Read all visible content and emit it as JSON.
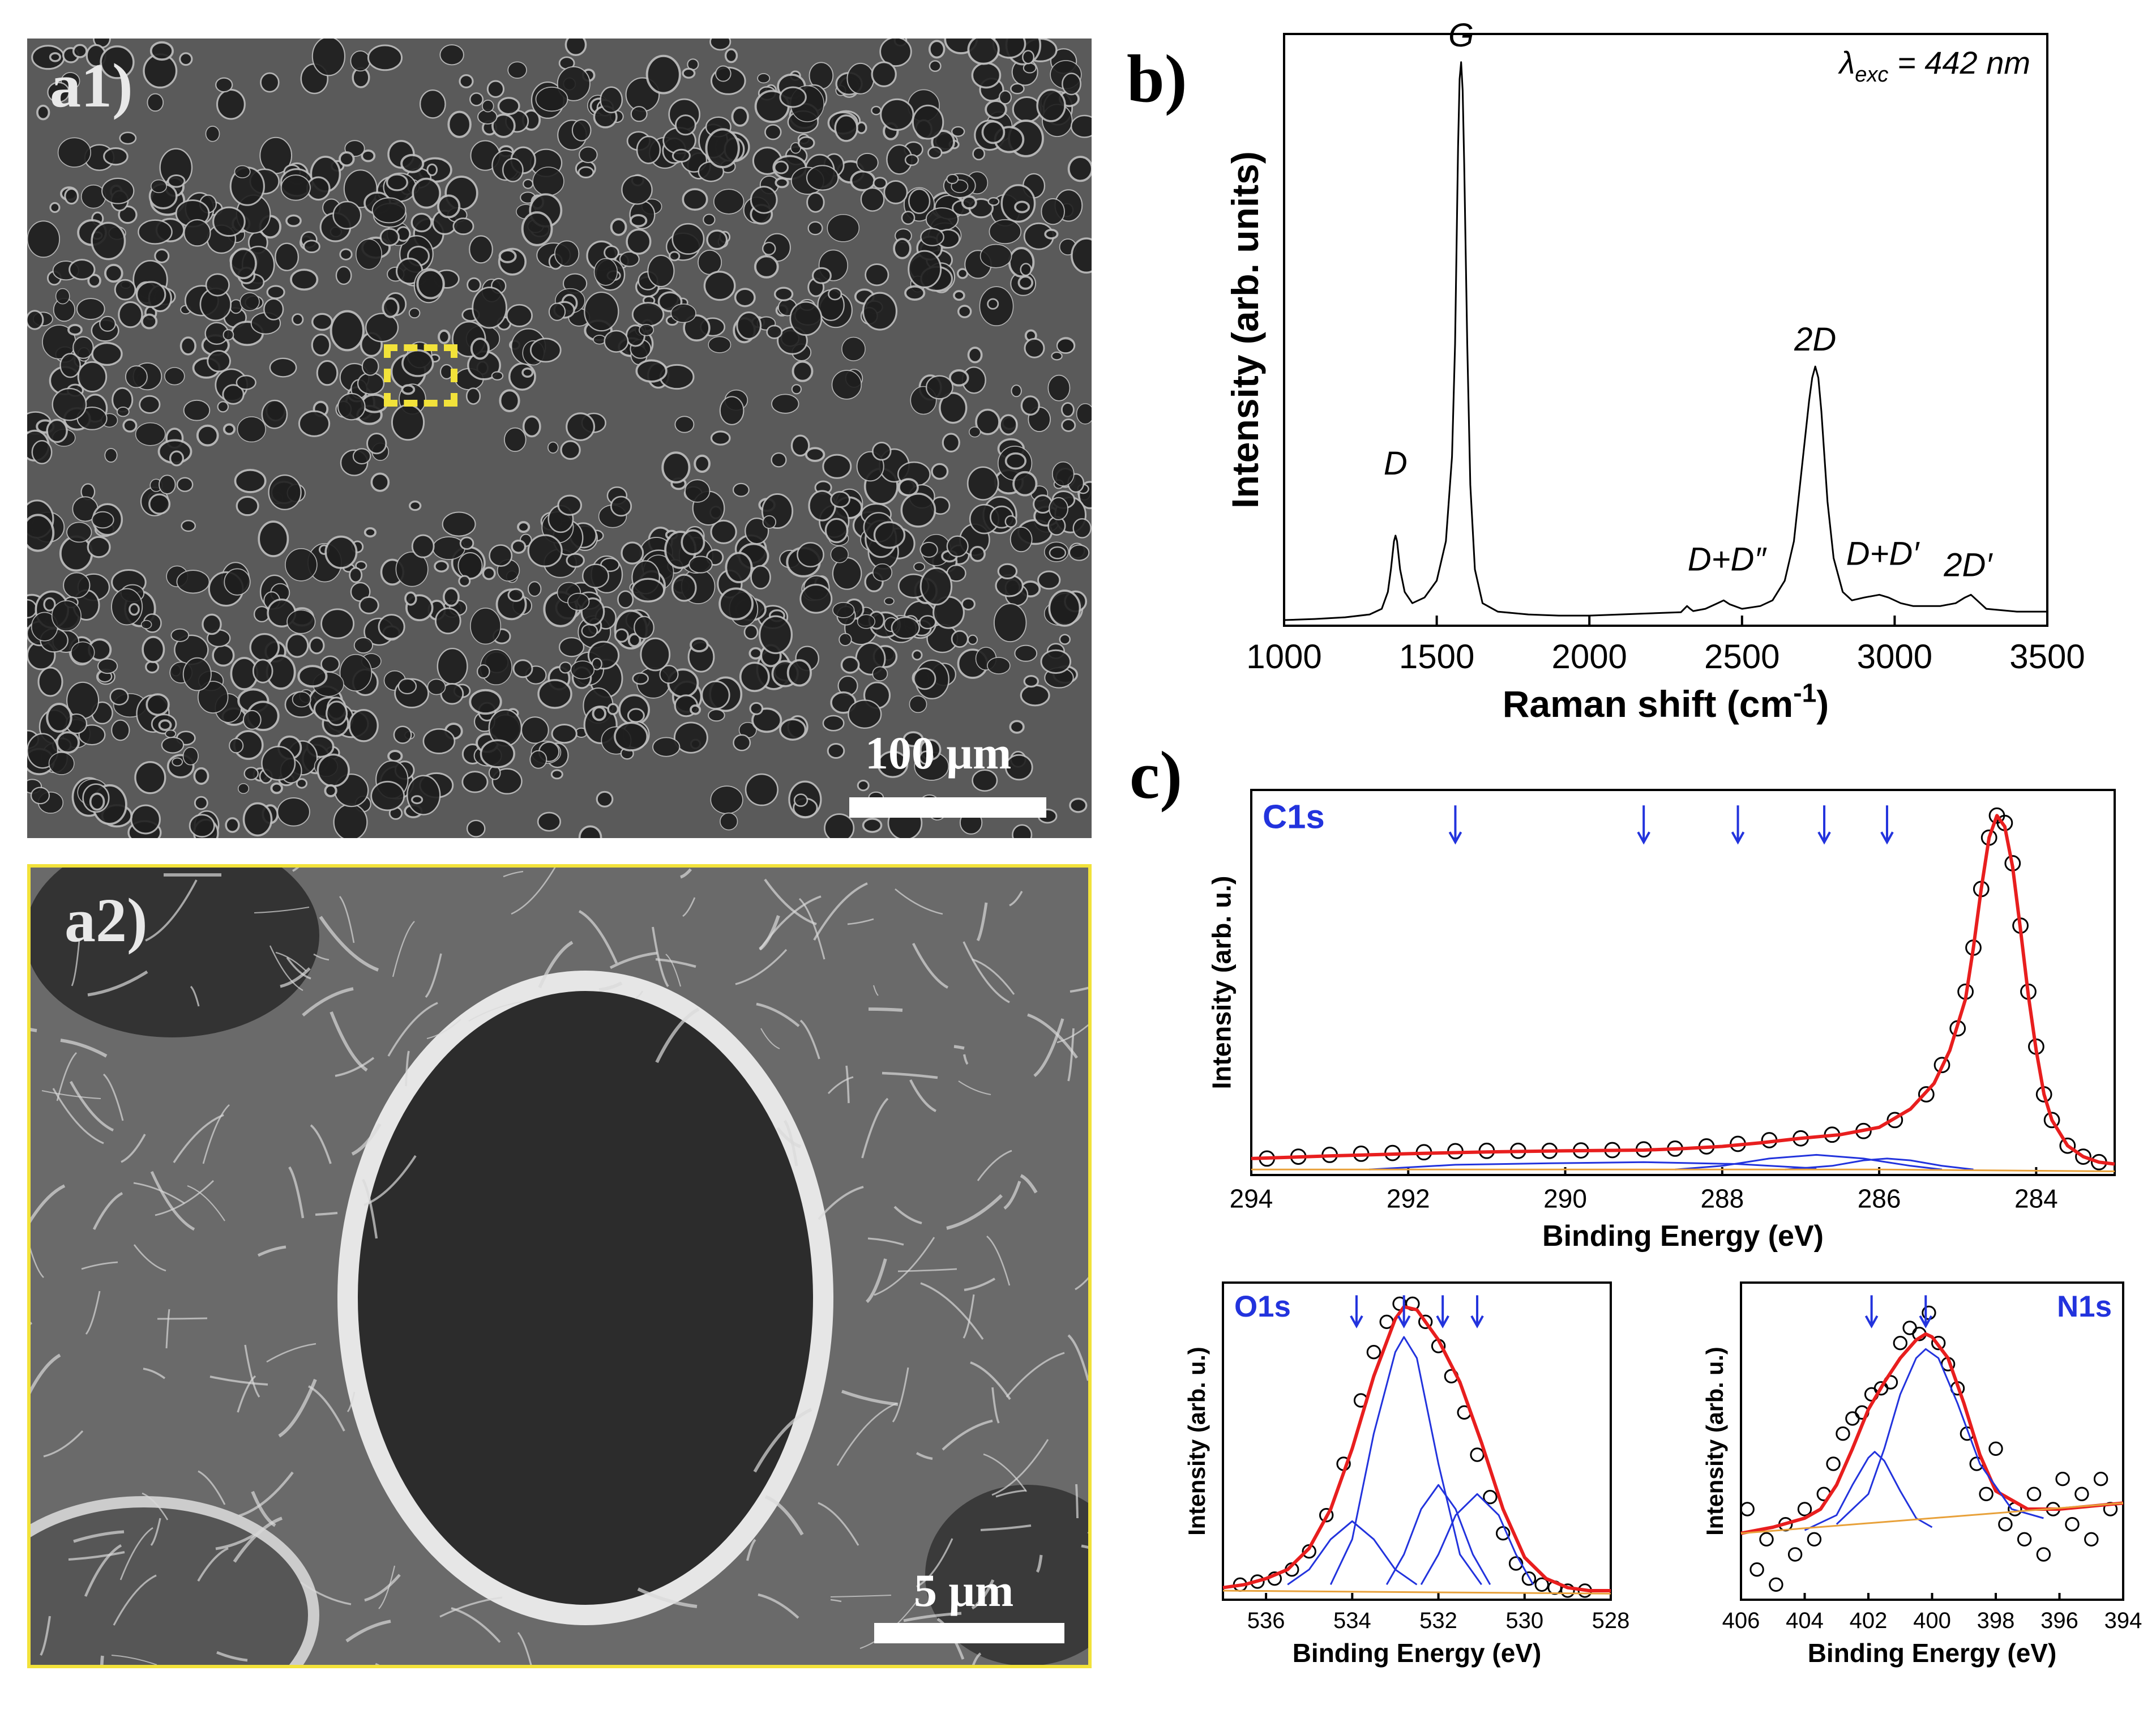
{
  "figure": {
    "label_a1": "a1)",
    "label_a2": "a2)",
    "label_b": "b)",
    "label_c": "c)",
    "scalebar_a1": "100 μm",
    "scalebar_a2": "5 μm",
    "highlight_color": "#f2e23a"
  },
  "chart_data": [
    {
      "id": "raman",
      "type": "line",
      "xlabel": "Raman shift (cm",
      "xlabel_sup": "-1",
      "xlabel_end": ")",
      "ylabel": "Intensity (arb. units)",
      "xlim": [
        1000,
        3500
      ],
      "xticks": [
        1000,
        1500,
        2000,
        2500,
        3000,
        3500
      ],
      "ylim": [
        0,
        1.05
      ],
      "y_tick_labels": false,
      "annotation_lambda": "λ",
      "annotation_sub": "exc",
      "annotation_value": " = 442 nm",
      "peak_labels": [
        {
          "text": "D",
          "x": 1365,
          "y": 0.24
        },
        {
          "text": "G",
          "x": 1580,
          "y": 1.0
        },
        {
          "text": "D+D″",
          "x": 2450,
          "y": 0.07
        },
        {
          "text": "2D",
          "x": 2740,
          "y": 0.46
        },
        {
          "text": "D+D′",
          "x": 2960,
          "y": 0.08
        },
        {
          "text": "2D′",
          "x": 3240,
          "y": 0.06
        }
      ],
      "series": [
        {
          "color": "#000000",
          "x": [
            1000,
            1100,
            1200,
            1280,
            1320,
            1340,
            1350,
            1360,
            1365,
            1370,
            1380,
            1395,
            1420,
            1460,
            1500,
            1530,
            1550,
            1560,
            1570,
            1575,
            1580,
            1585,
            1590,
            1600,
            1610,
            1625,
            1650,
            1700,
            1800,
            1900,
            2000,
            2100,
            2200,
            2300,
            2320,
            2330,
            2340,
            2380,
            2420,
            2440,
            2460,
            2500,
            2560,
            2600,
            2640,
            2670,
            2700,
            2720,
            2730,
            2740,
            2750,
            2760,
            2780,
            2800,
            2830,
            2860,
            2900,
            2950,
            2980,
            3020,
            3060,
            3100,
            3150,
            3200,
            3230,
            3250,
            3270,
            3300,
            3400,
            3500
          ],
          "y": [
            0.01,
            0.012,
            0.015,
            0.02,
            0.03,
            0.06,
            0.1,
            0.15,
            0.16,
            0.15,
            0.1,
            0.06,
            0.04,
            0.05,
            0.08,
            0.15,
            0.3,
            0.5,
            0.85,
            0.97,
            1.0,
            0.95,
            0.82,
            0.5,
            0.25,
            0.1,
            0.04,
            0.025,
            0.02,
            0.018,
            0.018,
            0.02,
            0.022,
            0.024,
            0.035,
            0.03,
            0.026,
            0.03,
            0.04,
            0.045,
            0.038,
            0.03,
            0.035,
            0.045,
            0.08,
            0.15,
            0.3,
            0.4,
            0.44,
            0.46,
            0.44,
            0.38,
            0.22,
            0.12,
            0.06,
            0.045,
            0.05,
            0.055,
            0.05,
            0.04,
            0.035,
            0.035,
            0.035,
            0.04,
            0.05,
            0.055,
            0.045,
            0.03,
            0.025,
            0.025
          ]
        }
      ]
    },
    {
      "id": "xps-c1s",
      "type": "scatter",
      "panel_title": "C1s",
      "xlabel": "Binding Energy (eV)",
      "ylabel": "Intensity (arb. u.)",
      "xlim": [
        294,
        283
      ],
      "xticks": [
        294,
        292,
        290,
        288,
        286,
        284
      ],
      "ylim": [
        0,
        1.05
      ],
      "y_tick_labels": false,
      "arrows_x": [
        291.4,
        289.0,
        287.8,
        286.7,
        285.9
      ],
      "series": [
        {
          "role": "data",
          "color": "#000000",
          "x": [
            293.8,
            293.4,
            293,
            292.6,
            292.2,
            291.8,
            291.4,
            291,
            290.6,
            290.2,
            289.8,
            289.4,
            289,
            288.6,
            288.2,
            287.8,
            287.4,
            287,
            286.6,
            286.2,
            285.8,
            285.4,
            285.2,
            285,
            284.9,
            284.8,
            284.7,
            284.6,
            284.5,
            284.4,
            284.3,
            284.2,
            284.1,
            284,
            283.9,
            283.8,
            283.6,
            283.4,
            283.2
          ],
          "y": [
            0.045,
            0.05,
            0.055,
            0.058,
            0.06,
            0.062,
            0.065,
            0.066,
            0.066,
            0.066,
            0.067,
            0.068,
            0.07,
            0.072,
            0.078,
            0.085,
            0.095,
            0.1,
            0.11,
            0.12,
            0.15,
            0.22,
            0.3,
            0.4,
            0.5,
            0.62,
            0.78,
            0.92,
            0.98,
            0.96,
            0.85,
            0.68,
            0.5,
            0.35,
            0.22,
            0.15,
            0.08,
            0.05,
            0.035
          ]
        },
        {
          "role": "fit",
          "color": "#e81e1e",
          "x": [
            294,
            293,
            292,
            291,
            290,
            289,
            288.5,
            288,
            287.5,
            287,
            286.5,
            286,
            285.6,
            285.3,
            285.1,
            284.9,
            284.8,
            284.7,
            284.6,
            284.5,
            284.4,
            284.3,
            284.2,
            284.1,
            284,
            283.9,
            283.8,
            283.6,
            283.4,
            283.2,
            283
          ],
          "y": [
            0.045,
            0.052,
            0.058,
            0.063,
            0.066,
            0.068,
            0.072,
            0.078,
            0.088,
            0.1,
            0.11,
            0.13,
            0.18,
            0.25,
            0.34,
            0.48,
            0.62,
            0.78,
            0.92,
            0.98,
            0.95,
            0.84,
            0.67,
            0.49,
            0.34,
            0.22,
            0.15,
            0.08,
            0.05,
            0.035,
            0.03
          ]
        },
        {
          "role": "component",
          "color": "#2233dd",
          "x": [
            288.6,
            288,
            287.4,
            286.8,
            286.2,
            285.6,
            285.2
          ],
          "y": [
            0.015,
            0.025,
            0.045,
            0.055,
            0.045,
            0.025,
            0.015
          ]
        },
        {
          "role": "component",
          "color": "#2233dd",
          "x": [
            287.2,
            286.6,
            286.2,
            285.9,
            285.6,
            285.2,
            284.8
          ],
          "y": [
            0.015,
            0.025,
            0.04,
            0.045,
            0.04,
            0.025,
            0.015
          ]
        },
        {
          "role": "component",
          "color": "#2233dd",
          "x": [
            292.5,
            291.4,
            290.2,
            289,
            287.8,
            286.8
          ],
          "y": [
            0.015,
            0.028,
            0.032,
            0.035,
            0.03,
            0.018
          ]
        },
        {
          "role": "baseline",
          "color": "#e8a13a",
          "x": [
            294,
            286,
            283
          ],
          "y": [
            0.015,
            0.015,
            0.01
          ]
        }
      ]
    },
    {
      "id": "xps-o1s",
      "type": "scatter",
      "panel_title": "O1s",
      "xlabel": "Binding Energy (eV)",
      "ylabel": "Intensity (arb. u.)",
      "xlim": [
        537,
        528
      ],
      "xticks": [
        536,
        534,
        532,
        530,
        528
      ],
      "ylim": [
        0,
        1.05
      ],
      "y_tick_labels": false,
      "arrows_x": [
        533.9,
        532.8,
        531.9,
        531.1
      ],
      "series": [
        {
          "role": "data",
          "color": "#000000",
          "x": [
            536.6,
            536.2,
            535.8,
            535.4,
            535,
            534.6,
            534.2,
            533.8,
            533.5,
            533.2,
            532.9,
            532.6,
            532.3,
            532,
            531.7,
            531.4,
            531.1,
            530.8,
            530.5,
            530.2,
            529.9,
            529.6,
            529.3,
            529,
            528.6
          ],
          "y": [
            0.05,
            0.06,
            0.07,
            0.1,
            0.16,
            0.28,
            0.45,
            0.66,
            0.82,
            0.92,
            0.98,
            0.98,
            0.92,
            0.84,
            0.74,
            0.62,
            0.48,
            0.34,
            0.22,
            0.12,
            0.07,
            0.05,
            0.04,
            0.03,
            0.03
          ]
        },
        {
          "role": "fit",
          "color": "#e81e1e",
          "x": [
            537,
            536.5,
            536,
            535.5,
            535,
            534.5,
            534,
            533.5,
            533,
            532.8,
            532.5,
            532,
            531.5,
            531,
            530.5,
            530,
            529.5,
            529,
            528.5,
            528
          ],
          "y": [
            0.04,
            0.05,
            0.07,
            0.1,
            0.17,
            0.3,
            0.5,
            0.74,
            0.93,
            0.97,
            0.96,
            0.86,
            0.72,
            0.52,
            0.3,
            0.14,
            0.07,
            0.04,
            0.03,
            0.03
          ]
        },
        {
          "role": "component",
          "color": "#2233dd",
          "x": [
            535.5,
            535,
            534.5,
            534,
            533.5,
            533,
            532.5
          ],
          "y": [
            0.05,
            0.1,
            0.2,
            0.26,
            0.2,
            0.1,
            0.05
          ]
        },
        {
          "role": "component",
          "color": "#2233dd",
          "x": [
            534.5,
            534,
            533.5,
            533,
            532.8,
            532.5,
            532,
            531.5,
            531
          ],
          "y": [
            0.05,
            0.2,
            0.55,
            0.82,
            0.87,
            0.8,
            0.45,
            0.15,
            0.05
          ]
        },
        {
          "role": "component",
          "color": "#2233dd",
          "x": [
            533.2,
            532.8,
            532.4,
            532,
            531.6,
            531.2,
            530.8
          ],
          "y": [
            0.05,
            0.15,
            0.3,
            0.38,
            0.3,
            0.15,
            0.05
          ]
        },
        {
          "role": "component",
          "color": "#2233dd",
          "x": [
            532.4,
            532,
            531.6,
            531.1,
            530.6,
            530.2,
            529.8
          ],
          "y": [
            0.05,
            0.15,
            0.28,
            0.35,
            0.28,
            0.15,
            0.05
          ]
        },
        {
          "role": "baseline",
          "color": "#e8a13a",
          "x": [
            537,
            528
          ],
          "y": [
            0.03,
            0.02
          ]
        }
      ]
    },
    {
      "id": "xps-n1s",
      "type": "scatter",
      "panel_title": "N1s",
      "xlabel": "Binding Energy (eV)",
      "ylabel": "Intensity (arb. u.)",
      "xlim": [
        406,
        394
      ],
      "xticks": [
        406,
        404,
        402,
        400,
        398,
        396,
        394
      ],
      "ylim": [
        0,
        1.05
      ],
      "y_tick_labels": false,
      "arrows_x": [
        401.9,
        400.2
      ],
      "series": [
        {
          "role": "data",
          "color": "#000000",
          "x": [
            405.8,
            405.5,
            405.2,
            404.9,
            404.6,
            404.3,
            404,
            403.7,
            403.4,
            403.1,
            402.8,
            402.5,
            402.2,
            401.9,
            401.6,
            401.3,
            401,
            400.7,
            400.4,
            400.1,
            399.8,
            399.5,
            399.2,
            398.9,
            398.6,
            398.3,
            398,
            397.7,
            397.4,
            397.1,
            396.8,
            396.5,
            396.2,
            395.9,
            395.6,
            395.3,
            395,
            394.7,
            394.4
          ],
          "y": [
            0.3,
            0.1,
            0.2,
            0.05,
            0.25,
            0.15,
            0.3,
            0.2,
            0.35,
            0.45,
            0.55,
            0.6,
            0.62,
            0.68,
            0.7,
            0.72,
            0.85,
            0.9,
            0.88,
            0.95,
            0.85,
            0.78,
            0.7,
            0.55,
            0.45,
            0.35,
            0.5,
            0.25,
            0.3,
            0.2,
            0.35,
            0.15,
            0.3,
            0.4,
            0.25,
            0.35,
            0.2,
            0.4,
            0.3
          ]
        },
        {
          "role": "fit",
          "color": "#e81e1e",
          "x": [
            406,
            405,
            404,
            403.5,
            403,
            402.5,
            402,
            401.5,
            401,
            400.5,
            400.2,
            400,
            399.5,
            399,
            398.5,
            398,
            397,
            396,
            395,
            394
          ],
          "y": [
            0.22,
            0.24,
            0.27,
            0.3,
            0.38,
            0.5,
            0.63,
            0.72,
            0.8,
            0.86,
            0.88,
            0.87,
            0.8,
            0.65,
            0.48,
            0.36,
            0.3,
            0.3,
            0.31,
            0.32
          ]
        },
        {
          "role": "component",
          "color": "#2233dd",
          "x": [
            404,
            403,
            402.5,
            402,
            401.8,
            401.5,
            401,
            400.5,
            400
          ],
          "y": [
            0.23,
            0.28,
            0.38,
            0.47,
            0.49,
            0.46,
            0.36,
            0.27,
            0.24
          ]
        },
        {
          "role": "component",
          "color": "#2233dd",
          "x": [
            403,
            402,
            401.5,
            401,
            400.5,
            400.2,
            399.8,
            399.2,
            398.5,
            397.5,
            396.5
          ],
          "y": [
            0.25,
            0.35,
            0.5,
            0.68,
            0.8,
            0.83,
            0.8,
            0.65,
            0.45,
            0.3,
            0.27
          ]
        },
        {
          "role": "baseline",
          "color": "#e8a13a",
          "x": [
            406,
            394
          ],
          "y": [
            0.22,
            0.32
          ]
        }
      ]
    }
  ]
}
